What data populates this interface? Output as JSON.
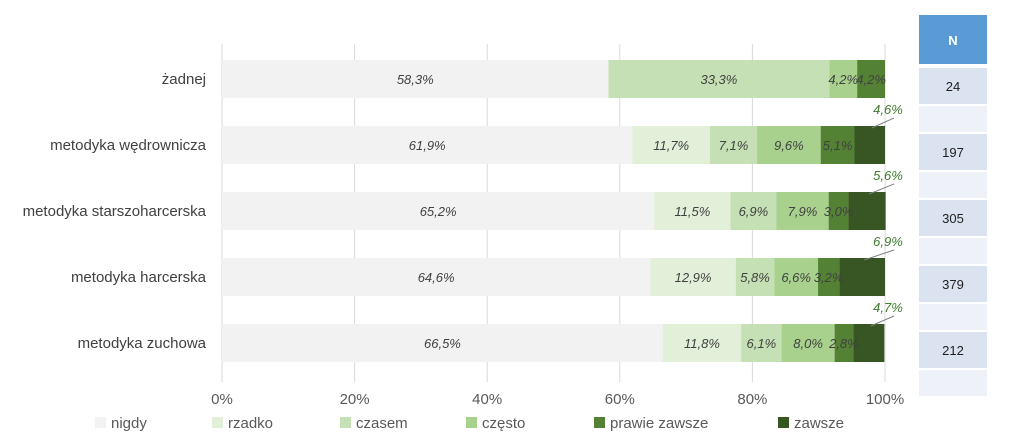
{
  "chart_data": {
    "type": "bar",
    "orientation": "horizontal",
    "stacked": "percent",
    "categories": [
      "żadnej",
      "metodyka wędrownicza",
      "metodyka starszoharcerska",
      "metodyka harcerska",
      "metodyka zuchowa"
    ],
    "series": [
      {
        "name": "nigdy",
        "color": "#f2f2f2",
        "values": [
          58.3,
          61.9,
          65.2,
          64.6,
          66.5
        ],
        "labels": [
          "58,3%",
          "61,9%",
          "65,2%",
          "64,6%",
          "66,5%"
        ]
      },
      {
        "name": "rzadko",
        "color": "#e2f0d9",
        "values": [
          0,
          11.7,
          11.5,
          12.9,
          11.8
        ],
        "labels": [
          "",
          "11,7%",
          "11,5%",
          "12,9%",
          "11,8%"
        ]
      },
      {
        "name": "czasem",
        "color": "#c5e0b4",
        "values": [
          33.3,
          7.1,
          6.9,
          5.8,
          6.1
        ],
        "labels": [
          "33,3%",
          "7,1%",
          "6,9%",
          "5,8%",
          "6,1%"
        ]
      },
      {
        "name": "często",
        "color": "#a9d18e",
        "values": [
          4.2,
          9.6,
          7.9,
          6.6,
          8.0
        ],
        "labels": [
          "4,2%",
          "9,6%",
          "7,9%",
          "6,6%",
          "8,0%"
        ]
      },
      {
        "name": "prawie zawsze",
        "color": "#548235",
        "values": [
          4.2,
          5.1,
          3.0,
          3.2,
          2.8
        ],
        "labels": [
          "4,2%",
          "5,1%",
          "3,0%",
          "3,2%",
          "2,8%"
        ]
      },
      {
        "name": "zawsze",
        "color": "#375623",
        "values": [
          0,
          4.6,
          5.6,
          6.9,
          4.7
        ],
        "labels": [
          "",
          "4,6%",
          "5,6%",
          "6,9%",
          "4,7%"
        ]
      }
    ],
    "x_ticks": [
      "0%",
      "20%",
      "40%",
      "60%",
      "80%",
      "100%"
    ],
    "xlim": [
      0,
      100
    ],
    "grid": true,
    "legend": {
      "placement": "bottom"
    },
    "n_table": {
      "header": "N",
      "values": [
        "24",
        "197",
        "305",
        "379",
        "212"
      ]
    }
  }
}
